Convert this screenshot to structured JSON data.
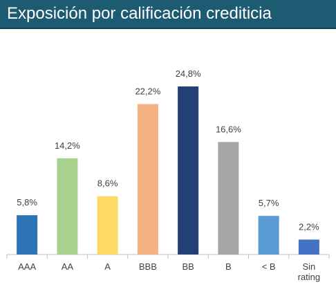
{
  "chart_data": {
    "type": "bar",
    "title": "Exposición por calificación crediticia",
    "categories": [
      "AAA",
      "AA",
      "A",
      "BBB",
      "BB",
      "B",
      "< B",
      "Sin rating"
    ],
    "values": [
      5.8,
      14.2,
      8.6,
      22.2,
      24.8,
      16.6,
      5.7,
      2.2
    ],
    "value_labels": [
      "5,8%",
      "14,2%",
      "8,6%",
      "22,2%",
      "24,8%",
      "16,6%",
      "5,7%",
      "2,2%"
    ],
    "colors": [
      "#2e75b6",
      "#a9d18e",
      "#ffd966",
      "#f4b183",
      "#243f73",
      "#a6a6a6",
      "#5b9bd5",
      "#4472c4"
    ]
  }
}
